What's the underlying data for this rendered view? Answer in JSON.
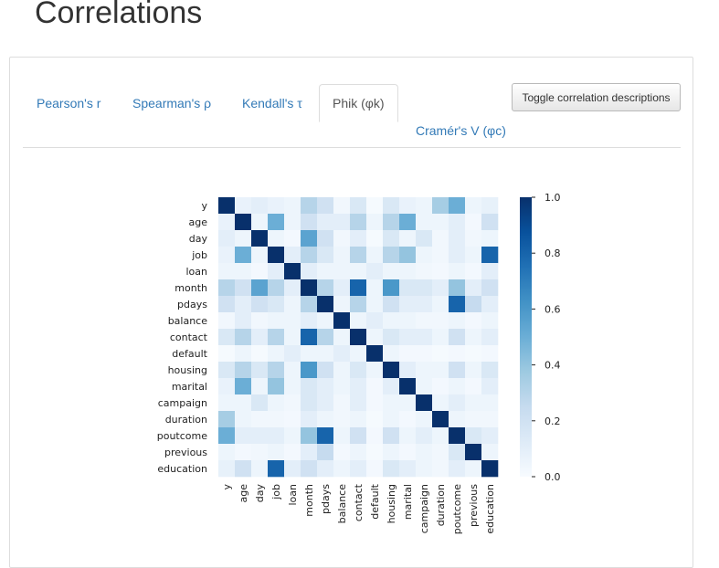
{
  "page": {
    "title": "Correlations"
  },
  "tabs": [
    {
      "label": "Pearson's r",
      "active": false
    },
    {
      "label": "Spearman's ρ",
      "active": false
    },
    {
      "label": "Kendall's τ",
      "active": false
    },
    {
      "label": "Phik (φk)",
      "active": true
    },
    {
      "label": "Cramér's V (φc)",
      "active": false
    }
  ],
  "toggle_button": {
    "label": "Toggle correlation descriptions"
  },
  "chart_data": {
    "type": "heatmap",
    "title": "",
    "variables": [
      "y",
      "age",
      "day",
      "job",
      "loan",
      "month",
      "pdays",
      "balance",
      "contact",
      "default",
      "housing",
      "marital",
      "campaign",
      "duration",
      "poutcome",
      "previous",
      "education"
    ],
    "colorbar": {
      "min": 0.0,
      "max": 1.0,
      "ticks": [
        "0.0",
        "0.2",
        "0.4",
        "0.6",
        "0.8",
        "1.0"
      ]
    },
    "colors": {
      "low": "#f7fbff",
      "high": "#08306b"
    },
    "matrix": [
      [
        1.0,
        0.07,
        0.1,
        0.07,
        0.05,
        0.3,
        0.2,
        0.03,
        0.15,
        0.01,
        0.15,
        0.07,
        0.05,
        0.35,
        0.5,
        0.05,
        0.08
      ],
      [
        0.07,
        1.0,
        0.05,
        0.5,
        0.05,
        0.2,
        0.1,
        0.1,
        0.3,
        0.05,
        0.3,
        0.5,
        0.05,
        0.05,
        0.1,
        0.02,
        0.2
      ],
      [
        0.1,
        0.05,
        1.0,
        0.05,
        0.02,
        0.55,
        0.2,
        0.03,
        0.1,
        0.01,
        0.15,
        0.05,
        0.15,
        0.03,
        0.1,
        0.03,
        0.05
      ],
      [
        0.07,
        0.5,
        0.05,
        1.0,
        0.1,
        0.3,
        0.15,
        0.05,
        0.3,
        0.05,
        0.3,
        0.4,
        0.05,
        0.03,
        0.1,
        0.05,
        0.8
      ],
      [
        0.05,
        0.05,
        0.02,
        0.1,
        1.0,
        0.1,
        0.05,
        0.05,
        0.05,
        0.1,
        0.05,
        0.05,
        0.03,
        0.02,
        0.05,
        0.02,
        0.1
      ],
      [
        0.3,
        0.2,
        0.55,
        0.3,
        0.1,
        1.0,
        0.3,
        0.1,
        0.8,
        0.05,
        0.6,
        0.15,
        0.15,
        0.1,
        0.4,
        0.1,
        0.2
      ],
      [
        0.2,
        0.1,
        0.2,
        0.15,
        0.05,
        0.3,
        1.0,
        0.05,
        0.3,
        0.05,
        0.2,
        0.1,
        0.1,
        0.05,
        0.8,
        0.25,
        0.1
      ],
      [
        0.03,
        0.1,
        0.03,
        0.05,
        0.05,
        0.1,
        0.05,
        1.0,
        0.05,
        0.1,
        0.05,
        0.05,
        0.03,
        0.03,
        0.05,
        0.02,
        0.05
      ],
      [
        0.15,
        0.3,
        0.1,
        0.3,
        0.05,
        0.8,
        0.3,
        0.05,
        1.0,
        0.05,
        0.15,
        0.1,
        0.1,
        0.05,
        0.2,
        0.05,
        0.1
      ],
      [
        0.01,
        0.05,
        0.01,
        0.05,
        0.1,
        0.05,
        0.05,
        0.1,
        0.05,
        1.0,
        0.05,
        0.02,
        0.02,
        0.01,
        0.02,
        0.01,
        0.02
      ],
      [
        0.15,
        0.3,
        0.15,
        0.3,
        0.05,
        0.6,
        0.2,
        0.05,
        0.15,
        0.05,
        1.0,
        0.1,
        0.05,
        0.05,
        0.2,
        0.05,
        0.15
      ],
      [
        0.07,
        0.5,
        0.05,
        0.4,
        0.05,
        0.15,
        0.1,
        0.05,
        0.1,
        0.02,
        0.1,
        1.0,
        0.05,
        0.02,
        0.05,
        0.02,
        0.1
      ],
      [
        0.05,
        0.05,
        0.15,
        0.05,
        0.03,
        0.15,
        0.1,
        0.03,
        0.1,
        0.02,
        0.05,
        0.05,
        1.0,
        0.05,
        0.1,
        0.05,
        0.05
      ],
      [
        0.35,
        0.05,
        0.03,
        0.03,
        0.02,
        0.1,
        0.05,
        0.03,
        0.05,
        0.01,
        0.05,
        0.02,
        0.05,
        1.0,
        0.05,
        0.03,
        0.03
      ],
      [
        0.5,
        0.1,
        0.1,
        0.1,
        0.05,
        0.4,
        0.8,
        0.05,
        0.2,
        0.02,
        0.2,
        0.05,
        0.1,
        0.05,
        1.0,
        0.15,
        0.1
      ],
      [
        0.05,
        0.02,
        0.03,
        0.05,
        0.02,
        0.1,
        0.25,
        0.02,
        0.05,
        0.01,
        0.05,
        0.02,
        0.05,
        0.03,
        0.15,
        1.0,
        0.05
      ],
      [
        0.08,
        0.2,
        0.05,
        0.8,
        0.1,
        0.2,
        0.1,
        0.05,
        0.1,
        0.02,
        0.15,
        0.1,
        0.05,
        0.03,
        0.1,
        0.05,
        1.0
      ]
    ]
  }
}
